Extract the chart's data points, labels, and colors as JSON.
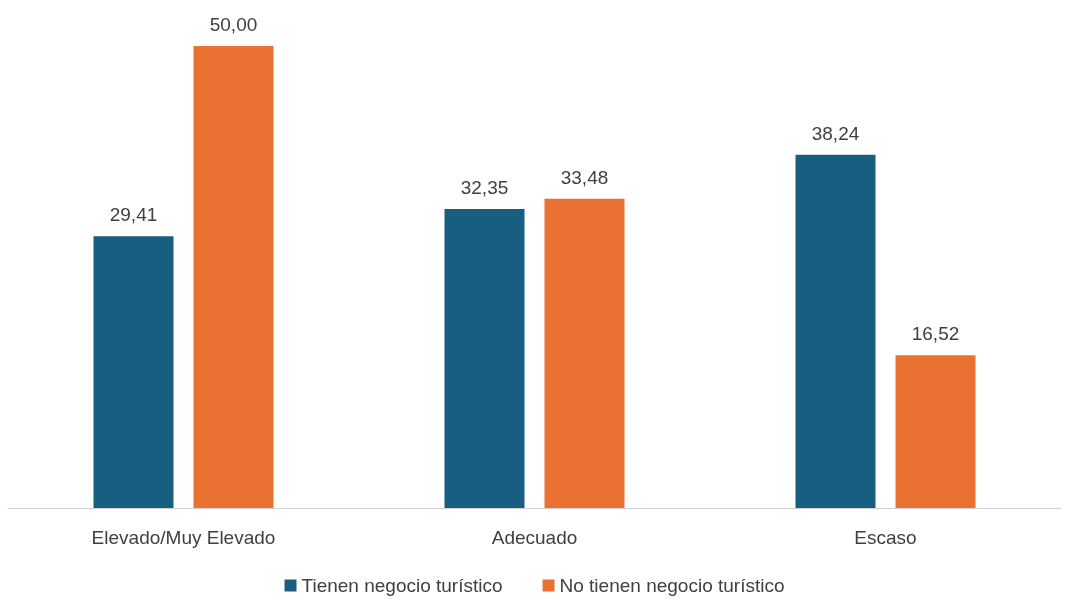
{
  "chart_data": {
    "type": "bar",
    "categories": [
      "Elevado/Muy Elevado",
      "Adecuado",
      "Escaso"
    ],
    "series": [
      {
        "name": "Tienen negocio turístico",
        "color": "#175e81",
        "values": [
          29.41,
          32.35,
          38.24
        ],
        "value_labels": [
          "29,41",
          "32,35",
          "38,24"
        ]
      },
      {
        "name": "No tienen negocio turístico",
        "color": "#e97132",
        "values": [
          50.0,
          33.48,
          16.52
        ],
        "value_labels": [
          "50,00",
          "33,48",
          "16,52"
        ]
      }
    ],
    "legend": "bottom",
    "grid": false,
    "tick_labels": "x"
  }
}
